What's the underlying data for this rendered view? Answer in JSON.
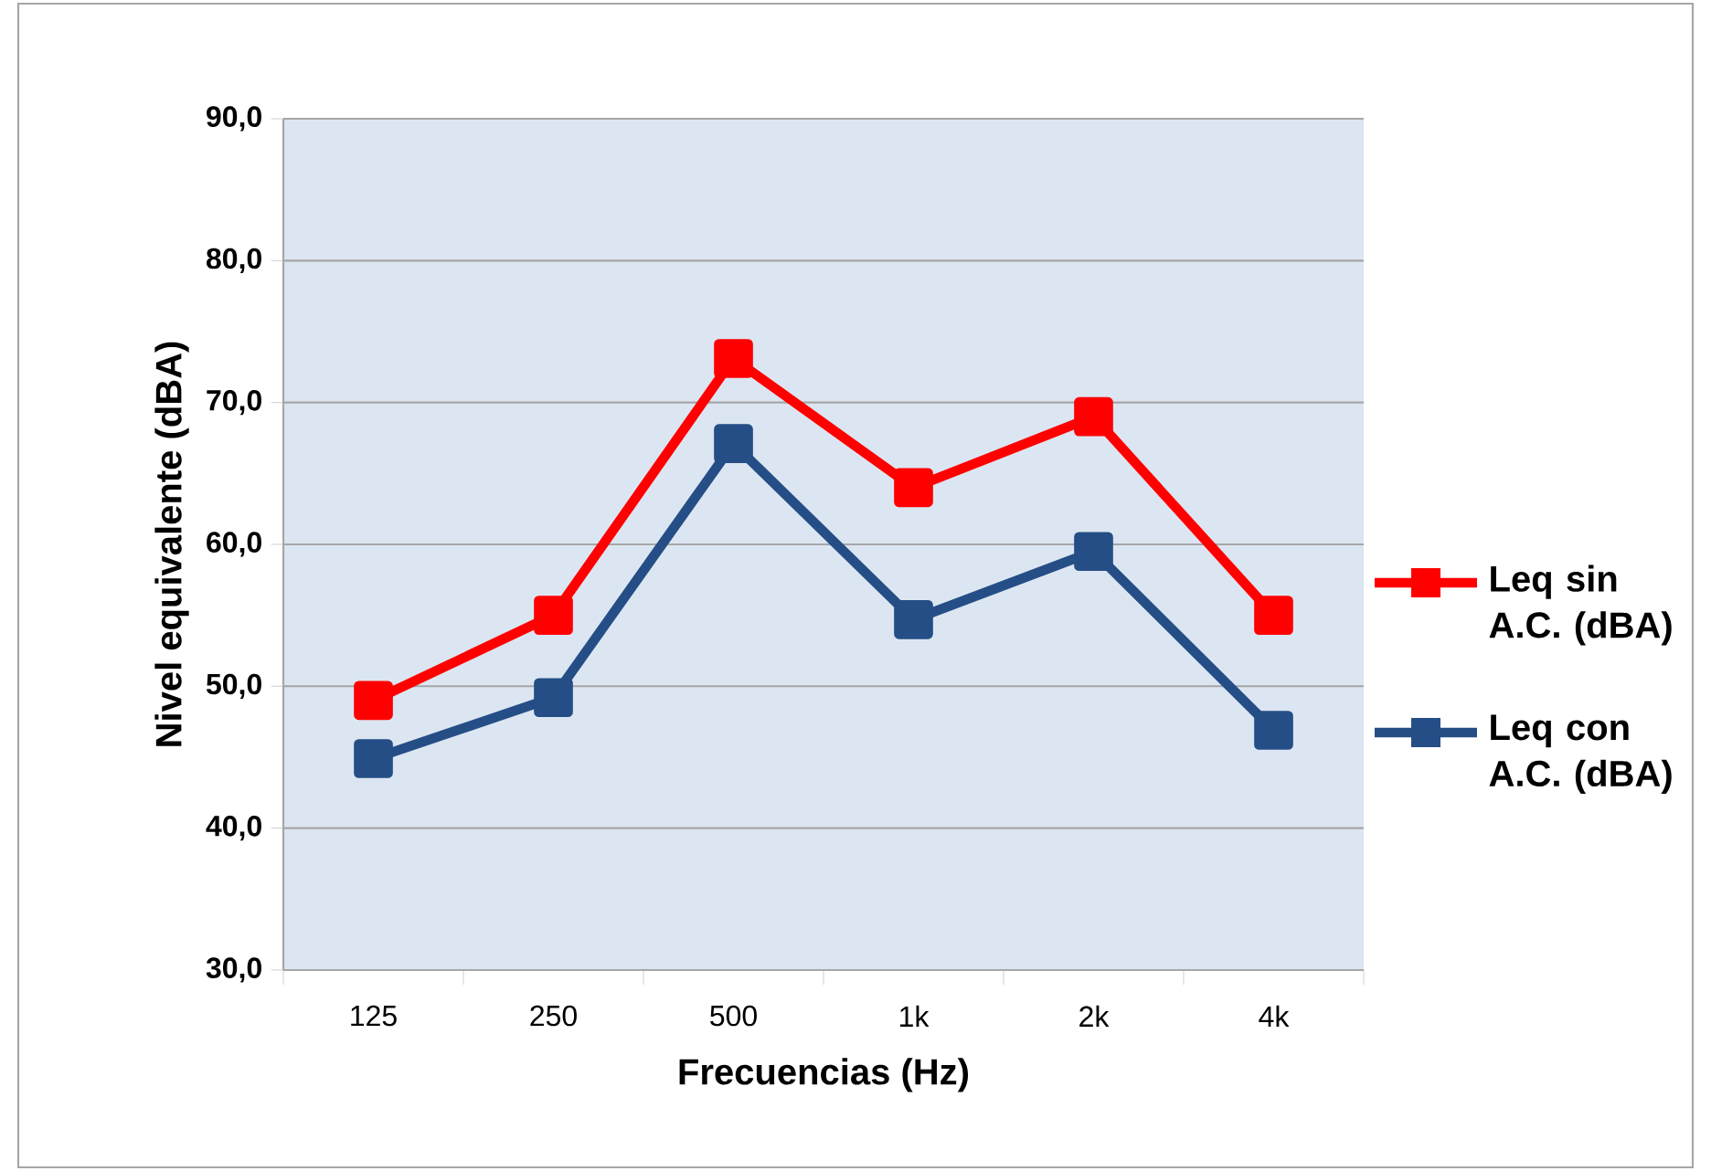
{
  "chart_data": {
    "type": "line",
    "xlabel": "Frecuencias (Hz)",
    "ylabel": "Nivel equivalente (dBA)",
    "categories": [
      "125",
      "250",
      "500",
      "1k",
      "2k",
      "4k"
    ],
    "series": [
      {
        "name": "Leq sin A.C. (dBA)",
        "color": "#ff0000",
        "values": [
          49,
          55,
          73.1,
          64,
          69,
          55
        ]
      },
      {
        "name": "Leq con A.C. (dBA)",
        "color": "#254e86",
        "values": [
          44.9,
          49.2,
          67.1,
          54.7,
          59.5,
          46.9
        ]
      }
    ],
    "ylim": [
      30,
      90
    ],
    "yticks": [
      {
        "value": 30,
        "label": "30,0"
      },
      {
        "value": 40,
        "label": "40,0"
      },
      {
        "value": 50,
        "label": "50,0"
      },
      {
        "value": 60,
        "label": "60,0"
      },
      {
        "value": 70,
        "label": "70,0"
      },
      {
        "value": 80,
        "label": "80,0"
      },
      {
        "value": 90,
        "label": "90,0"
      }
    ],
    "grid": "y",
    "legend": "right",
    "marker": "square",
    "line_style": "solid"
  }
}
